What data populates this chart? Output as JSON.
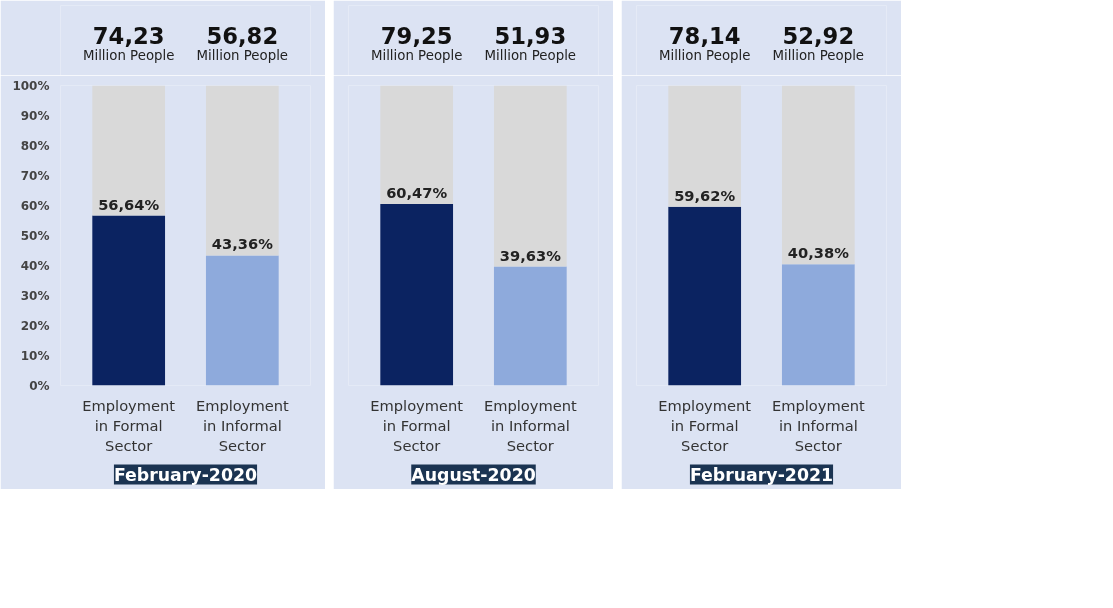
{
  "chart_data": [
    {
      "type": "bar",
      "stacked": true,
      "title": "February-2020",
      "categories": [
        "Employment in Formal Sector",
        "Employment in Informal Sector"
      ],
      "series": [
        {
          "colors": [
            "#0b2361",
            "#8eaadc"
          ],
          "values": [
            56.64,
            43.36
          ],
          "value_labels": [
            "56,64%",
            "43,36%"
          ]
        },
        {
          "color": "#d9d9d9",
          "values": [
            43.36,
            56.64
          ]
        }
      ],
      "ylim": [
        0,
        100
      ],
      "yticks": [
        {
          "value": 0,
          "label": "0%"
        },
        {
          "value": 10,
          "label": "10%"
        },
        {
          "value": 20,
          "label": "20%"
        },
        {
          "value": 30,
          "label": "30%"
        },
        {
          "value": 40,
          "label": "40%"
        },
        {
          "value": 50,
          "label": "50%"
        },
        {
          "value": 60,
          "label": "60%"
        },
        {
          "value": 70,
          "label": "70%"
        },
        {
          "value": 80,
          "label": "80%"
        },
        {
          "value": 90,
          "label": "90%"
        },
        {
          "value": 100,
          "label": "100%"
        }
      ],
      "annotations": [
        "74,23 Million People",
        "56,82 Million People"
      ]
    },
    {
      "type": "bar",
      "stacked": true,
      "title": "August-2020",
      "categories": [
        "Employment in Formal Sector",
        "Employment in Informal Sector"
      ],
      "series": [
        {
          "colors": [
            "#0b2361",
            "#8eaadc"
          ],
          "values": [
            60.47,
            39.63
          ],
          "value_labels": [
            "60,47%",
            "39,63%"
          ]
        },
        {
          "color": "#d9d9d9",
          "values": [
            39.53,
            60.37
          ]
        }
      ],
      "ylim": [
        0,
        100
      ],
      "tick_labels": "x",
      "annotations": [
        "79,25 Million People",
        "51,93 Million People"
      ]
    },
    {
      "type": "bar",
      "stacked": true,
      "title": "February-2021",
      "categories": [
        "Employment in Formal Sector",
        "Employment in Informal Sector"
      ],
      "series": [
        {
          "colors": [
            "#0b2361",
            "#8eaadc"
          ],
          "values": [
            59.62,
            40.38
          ],
          "value_labels": [
            "59,62%",
            "40,38%"
          ]
        },
        {
          "color": "#d9d9d9",
          "values": [
            40.38,
            59.62
          ]
        }
      ],
      "ylim": [
        0,
        100
      ],
      "tick_labels": "x",
      "annotations": [
        "78,14 Million People",
        "52,92 Million People"
      ]
    }
  ]
}
